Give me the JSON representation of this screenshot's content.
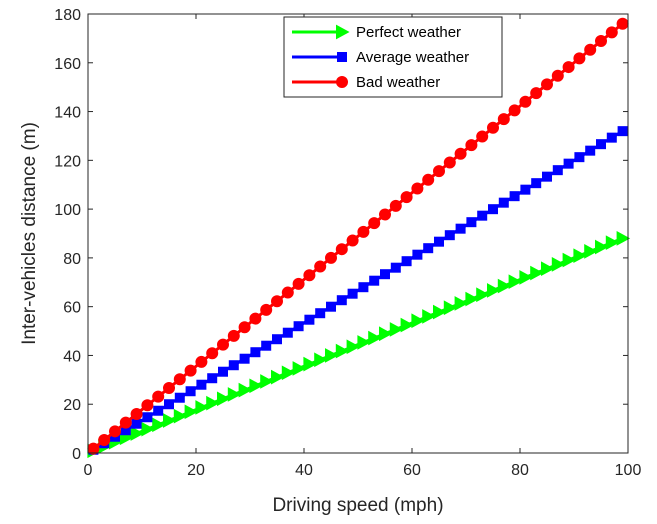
{
  "chart_data": {
    "type": "line",
    "title": "",
    "xlabel": "Driving speed (mph)",
    "ylabel": "Inter-vehicles distance (m)",
    "xlim": [
      0,
      100
    ],
    "ylim": [
      0,
      180
    ],
    "xticks": [
      0,
      20,
      40,
      60,
      80,
      100
    ],
    "yticks": [
      0,
      20,
      40,
      60,
      80,
      100,
      120,
      140,
      160,
      180
    ],
    "grid": false,
    "legend_position": "top",
    "x": {
      "start": 1,
      "end": 99,
      "step": 2
    },
    "series": [
      {
        "name": "Perfect weather",
        "color": "#00ff00",
        "marker": "triangle-right",
        "slope": 0.889,
        "intercept": 0
      },
      {
        "name": "Average weather",
        "color": "#0000ff",
        "marker": "square",
        "slope": 1.333,
        "intercept": 0
      },
      {
        "name": "Bad weather",
        "color": "#ff0000",
        "marker": "circle",
        "slope": 1.778,
        "intercept": 0
      }
    ]
  }
}
